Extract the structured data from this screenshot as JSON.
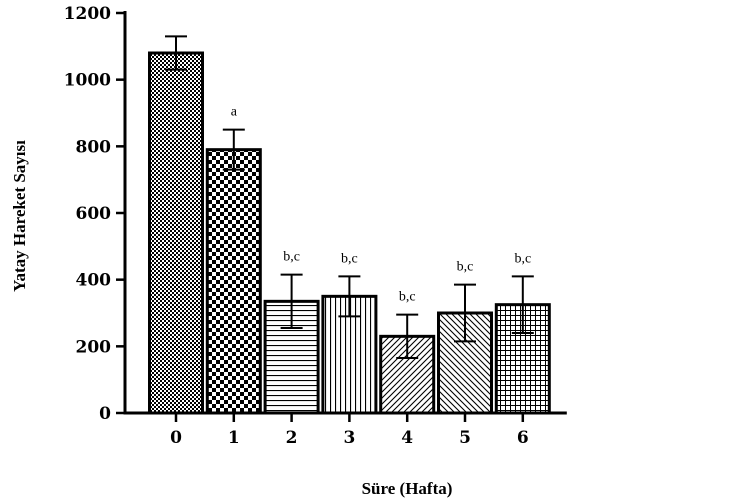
{
  "chart_data": {
    "type": "bar",
    "xlabel": "Süre (Hafta)",
    "ylabel": "Yatay Hareket Sayısı",
    "ylim": [
      0,
      1200
    ],
    "yticks": [
      0,
      200,
      400,
      600,
      800,
      1000,
      1200
    ],
    "categories": [
      "0",
      "1",
      "2",
      "3",
      "4",
      "5",
      "6"
    ],
    "values": [
      1080,
      790,
      335,
      350,
      230,
      300,
      325
    ],
    "error": [
      50,
      60,
      80,
      60,
      65,
      85,
      85
    ],
    "annotations": [
      "",
      "a",
      "b,c",
      "b,c",
      "b,c",
      "b,c",
      "b,c"
    ],
    "patterns": [
      "fine-check",
      "checker",
      "horizontal",
      "vertical",
      "diag-right",
      "diag-left",
      "grid"
    ],
    "colors": {
      "fill": "#ffffff",
      "stroke": "#000000"
    },
    "grid": false,
    "legend": "none"
  }
}
